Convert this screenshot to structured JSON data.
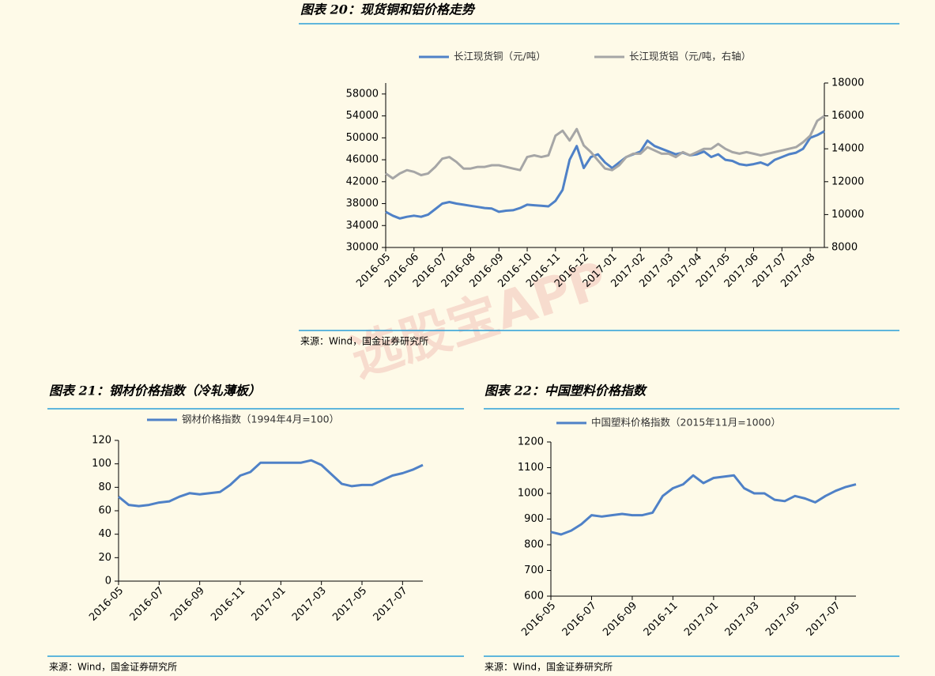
{
  "watermark": "选股宝APP",
  "chart_data": [
    {
      "type": "line",
      "title": "图表 20：现货铜和铝价格走势",
      "source": "来源：Wind，国金证券研究所",
      "categories": [
        "2016-05",
        null,
        null,
        null,
        "2016-06",
        null,
        null,
        null,
        "2016-07",
        null,
        null,
        null,
        "2016-08",
        null,
        null,
        null,
        "2016-09",
        null,
        null,
        null,
        "2016-10",
        null,
        null,
        null,
        "2016-11",
        null,
        null,
        null,
        "2016-12",
        null,
        null,
        null,
        "2017-01",
        null,
        null,
        null,
        "2017-02",
        null,
        null,
        null,
        "2017-03",
        null,
        null,
        null,
        "2017-04",
        null,
        null,
        null,
        "2017-05",
        null,
        null,
        null,
        "2017-06",
        null,
        null,
        null,
        "2017-07",
        null,
        null,
        null,
        "2017-08",
        null,
        null
      ],
      "series": [
        {
          "name": "长江现货铜（元/吨）",
          "color": "#4f81c7",
          "values": [
            36500,
            35800,
            35300,
            35600,
            35800,
            35600,
            36000,
            37000,
            38000,
            38300,
            38000,
            37800,
            37600,
            37400,
            37200,
            37100,
            36500,
            36700,
            36800,
            37200,
            37800,
            37700,
            37600,
            37500,
            38500,
            40500,
            46000,
            48500,
            44500,
            46500,
            47000,
            45500,
            44500,
            45500,
            46500,
            47000,
            47500,
            49500,
            48500,
            48000,
            47500,
            47000,
            47300,
            46800,
            47000,
            47500,
            46500,
            47000,
            46000,
            45800,
            45200,
            45000,
            45200,
            45500,
            45000,
            46000,
            46500,
            47000,
            47300,
            48000,
            50000,
            50500,
            51200
          ]
        },
        {
          "name": "长江现货铝（元/吨，右轴）",
          "color": "#a6a6a6",
          "axis": "y2",
          "values": [
            12500,
            12200,
            12500,
            12700,
            12600,
            12400,
            12500,
            12900,
            13400,
            13500,
            13200,
            12800,
            12800,
            12900,
            12900,
            13000,
            13000,
            12900,
            12800,
            12700,
            13500,
            13600,
            13500,
            13600,
            14800,
            15100,
            14500,
            15200,
            14200,
            13800,
            13300,
            12800,
            12700,
            13000,
            13500,
            13700,
            13700,
            14100,
            13900,
            13700,
            13700,
            13500,
            13800,
            13600,
            13800,
            14000,
            14000,
            14300,
            14000,
            13800,
            13700,
            13800,
            13700,
            13600,
            13700,
            13800,
            13900,
            14000,
            14100,
            14400,
            14800,
            15700,
            16000
          ]
        }
      ],
      "ylim": [
        30000,
        60000
      ],
      "yticks": [
        30000,
        34000,
        38000,
        42000,
        46000,
        50000,
        54000,
        58000
      ],
      "y2lim": [
        8000,
        18000
      ],
      "y2ticks": [
        8000,
        10000,
        12000,
        14000,
        16000,
        18000
      ],
      "legend": "top"
    },
    {
      "type": "line",
      "title": "图表 21：钢材价格指数（冷轧薄板）",
      "source": "来源：Wind，国金证券研究所",
      "categories": [
        "2016-05",
        null,
        null,
        null,
        "2016-07",
        null,
        null,
        null,
        "2016-09",
        null,
        null,
        null,
        "2016-11",
        null,
        null,
        null,
        "2017-01",
        null,
        null,
        null,
        "2017-03",
        null,
        null,
        null,
        "2017-05",
        null,
        null,
        null,
        "2017-07",
        null,
        null
      ],
      "series": [
        {
          "name": "钢材价格指数（1994年4月=100）",
          "color": "#4f81c7",
          "values": [
            72,
            65,
            64,
            65,
            67,
            68,
            72,
            75,
            74,
            75,
            76,
            82,
            90,
            93,
            101,
            101,
            101,
            101,
            101,
            103,
            99,
            91,
            83,
            81,
            82,
            82,
            86,
            90,
            92,
            95,
            99
          ]
        }
      ],
      "ylim": [
        0,
        120
      ],
      "yticks": [
        0,
        20,
        40,
        60,
        80,
        100,
        120
      ],
      "legend": "top"
    },
    {
      "type": "line",
      "title": "图表 22：中国塑料价格指数",
      "source": "来源：Wind，国金证券研究所",
      "categories": [
        "2016-05",
        null,
        null,
        null,
        "2016-07",
        null,
        null,
        null,
        "2016-09",
        null,
        null,
        null,
        "2016-11",
        null,
        null,
        null,
        "2017-01",
        null,
        null,
        null,
        "2017-03",
        null,
        null,
        null,
        "2017-05",
        null,
        null,
        null,
        "2017-07",
        null,
        null
      ],
      "series": [
        {
          "name": "中国塑料价格指数（2015年11月=1000）",
          "color": "#4f81c7",
          "values": [
            850,
            840,
            855,
            880,
            915,
            910,
            915,
            920,
            915,
            915,
            925,
            990,
            1020,
            1035,
            1070,
            1040,
            1060,
            1065,
            1070,
            1020,
            1000,
            1000,
            975,
            970,
            990,
            980,
            965,
            990,
            1010,
            1025,
            1035
          ]
        }
      ],
      "ylim": [
        600,
        1200
      ],
      "yticks": [
        600,
        700,
        800,
        900,
        1000,
        1100,
        1200
      ],
      "legend": "top"
    }
  ]
}
